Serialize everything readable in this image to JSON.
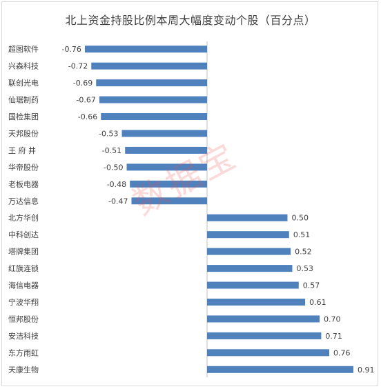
{
  "chart_data": {
    "type": "bar",
    "orientation": "horizontal",
    "title": "北上资金持股比例本周大幅度变动个股（百分点）",
    "categories": [
      "超图软件",
      "兴森科技",
      "联创光电",
      "仙琚制药",
      "国检集团",
      "天邦股份",
      "王 府 井",
      "华帝股份",
      "老板电器",
      "万达信息",
      "北方华创",
      "中科创达",
      "塔牌集团",
      "红旗连锁",
      "海信电器",
      "宁波华翔",
      "恒邦股份",
      "安洁科技",
      "东方雨虹",
      "天康生物"
    ],
    "values": [
      -0.76,
      -0.72,
      -0.69,
      -0.67,
      -0.66,
      -0.53,
      -0.51,
      -0.5,
      -0.48,
      -0.47,
      0.5,
      0.51,
      0.52,
      0.53,
      0.57,
      0.61,
      0.7,
      0.71,
      0.76,
      0.91
    ],
    "value_labels": [
      "-0.76",
      "-0.72",
      "-0.69",
      "-0.67",
      "-0.66",
      "-0.53",
      "-0.51",
      "-0.50",
      "-0.48",
      "-0.47",
      "0.50",
      "0.51",
      "0.52",
      "0.53",
      "0.57",
      "0.61",
      "0.70",
      "0.71",
      "0.76",
      "0.91"
    ],
    "bar_color": "#4f81bd",
    "axis_color": "#bfbfbf",
    "grid": false,
    "legend": "none",
    "xlim": [
      -0.91,
      0.91
    ]
  },
  "watermark": "数据宝"
}
